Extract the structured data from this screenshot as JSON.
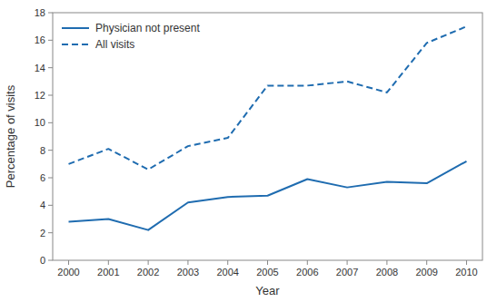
{
  "chart_data": {
    "type": "line",
    "x": [
      2000,
      2001,
      2002,
      2003,
      2004,
      2005,
      2006,
      2007,
      2008,
      2009,
      2010
    ],
    "series": [
      {
        "name": "Physician not present",
        "color": "#1f6cb0",
        "line_style": "solid",
        "values": [
          2.8,
          3.0,
          2.2,
          4.2,
          4.6,
          4.7,
          5.9,
          5.3,
          5.7,
          5.6,
          7.2
        ]
      },
      {
        "name": "All visits",
        "color": "#1f6cb0",
        "line_style": "dashed",
        "values": [
          7.0,
          8.1,
          6.6,
          8.3,
          8.9,
          12.7,
          12.7,
          13.0,
          12.2,
          15.8,
          17.0
        ]
      }
    ],
    "xlabel": "Year",
    "ylabel": "Percentage of visits",
    "xlim": [
      1999.6,
      2010.4
    ],
    "xticks": [
      2000,
      2001,
      2002,
      2003,
      2004,
      2005,
      2006,
      2007,
      2008,
      2009,
      2010
    ],
    "ylim": [
      0,
      18
    ],
    "yticks": [
      0,
      2,
      4,
      6,
      8,
      10,
      12,
      14,
      16,
      18
    ],
    "grid": false,
    "legend": "upper left"
  }
}
